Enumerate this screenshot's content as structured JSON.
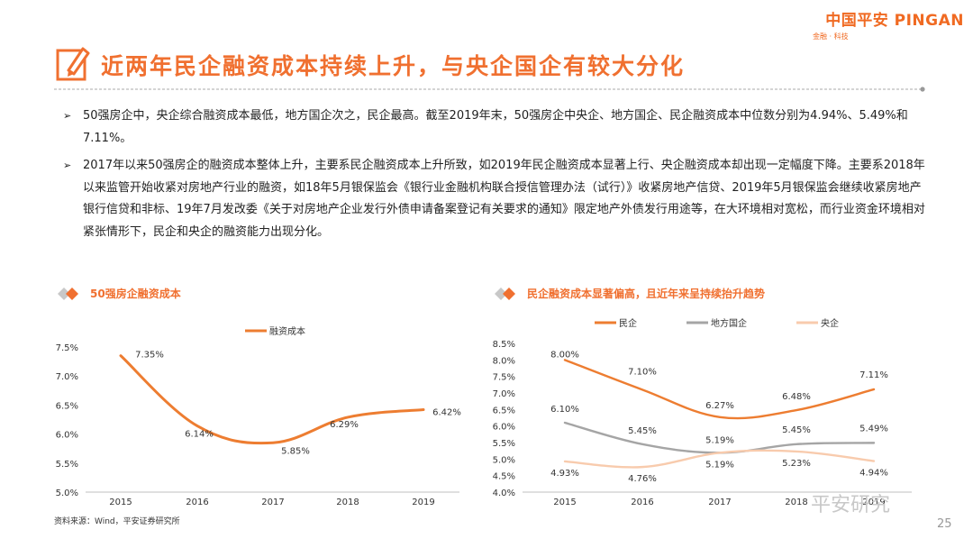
{
  "logo": {
    "brand": "中国平安 PINGAN",
    "tagline": "金融 · 科技"
  },
  "title": "近两年民企融资成本持续上升，与央企国企有较大分化",
  "bullets": [
    {
      "marker": "➢",
      "text": "50强房企中，央企综合融资成本最低，地方国企次之，民企最高。截至2019年末，50强房企中央企、地方国企、民企融资成本中位数分别为4.94%、5.49%和7.11%。"
    },
    {
      "marker": "➢",
      "text": "2017年以来50强房企的融资成本整体上升，主要系民企融资成本上升所致，如2019年民企融资成本显著上行、央企融资成本却出现一定幅度下降。主要系2018年以来监管开始收紧对房地产行业的融资，如18年5月银保监会《银行业金融机构联合授信管理办法（试行）》收紧房地产信贷、2019年5月银保监会继续收紧房地产银行信贷和非标、19年7月发改委《关于对房地产企业发行外债申请备案登记有关要求的通知》限定地产外债发行用途等，在大环境相对宽松，而行业资金环境相对紧张情形下，民企和央企的融资能力出现分化。"
    }
  ],
  "source": "资料来源：Wind，平安证券研究所",
  "page_number": "25",
  "watermark": "平安研究",
  "colors": {
    "accent": "#f07030",
    "orange": "#ed7d31",
    "gray": "#a5a5a5",
    "peach": "#f8cbad"
  },
  "chart_data": [
    {
      "type": "line",
      "title": "50强房企融资成本",
      "categories": [
        "2015",
        "2016",
        "2017",
        "2018",
        "2019"
      ],
      "series": [
        {
          "name": "融资成本",
          "values": [
            7.35,
            6.14,
            5.85,
            6.29,
            6.42
          ],
          "labels": [
            "7.35%",
            "6.14%",
            "5.85%",
            "6.29%",
            "6.42%"
          ]
        }
      ],
      "ylim": [
        5.0,
        7.5
      ],
      "yticks": [
        "5.0%",
        "5.5%",
        "6.0%",
        "6.5%",
        "7.0%",
        "7.5%"
      ],
      "ytick_values": [
        5.0,
        5.5,
        6.0,
        6.5,
        7.0,
        7.5
      ],
      "legend": "top-center",
      "smooth": true
    },
    {
      "type": "line",
      "title": "民企融资成本显著偏高，且近年来呈持续抬升趋势",
      "categories": [
        "2015",
        "2016",
        "2017",
        "2018",
        "2019"
      ],
      "series": [
        {
          "name": "民企",
          "values": [
            8.0,
            7.1,
            6.27,
            6.48,
            7.11
          ],
          "labels": [
            "8.00%",
            "7.10%",
            "6.27%",
            "6.48%",
            "7.11%"
          ]
        },
        {
          "name": "地方国企",
          "values": [
            6.1,
            5.45,
            5.19,
            5.45,
            5.49
          ],
          "labels": [
            "6.10%",
            "5.45%",
            "5.19%",
            "5.45%",
            "5.49%"
          ]
        },
        {
          "name": "央企",
          "values": [
            4.93,
            4.76,
            5.19,
            5.23,
            4.94
          ],
          "labels": [
            "4.93%",
            "4.76%",
            "5.19%",
            "5.23%",
            "4.94%"
          ]
        }
      ],
      "ylim": [
        4.0,
        8.5
      ],
      "yticks": [
        "4.0%",
        "4.5%",
        "5.0%",
        "5.5%",
        "6.0%",
        "6.5%",
        "7.0%",
        "7.5%",
        "8.0%",
        "8.5%"
      ],
      "ytick_values": [
        4.0,
        4.5,
        5.0,
        5.5,
        6.0,
        6.5,
        7.0,
        7.5,
        8.0,
        8.5
      ],
      "legend": "top",
      "smooth": true
    }
  ]
}
